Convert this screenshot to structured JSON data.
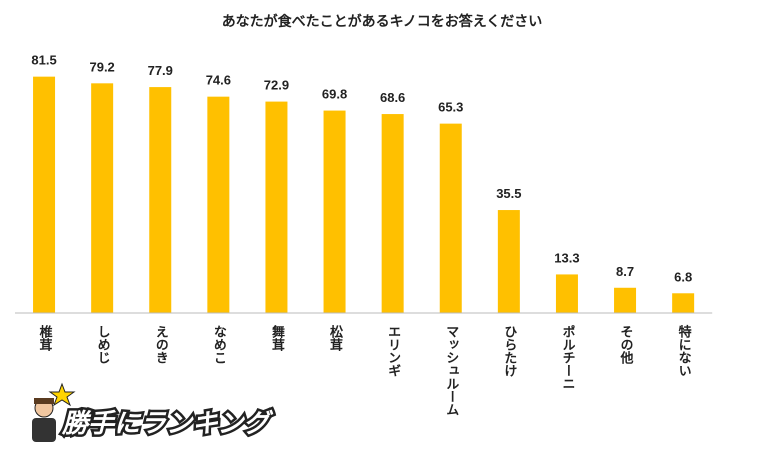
{
  "chart_data": {
    "type": "bar",
    "title": "あなたが食べたことがあるキノコをお答えください",
    "categories": [
      "椎茸",
      "しめじ",
      "えのき",
      "なめこ",
      "舞茸",
      "松茸",
      "エリンギ",
      "マッシュルーム",
      "ひらたけ",
      "ポルチーニ",
      "その他",
      "特にない"
    ],
    "values": [
      81.5,
      79.2,
      77.9,
      74.6,
      72.9,
      69.8,
      68.6,
      65.3,
      35.5,
      13.3,
      8.7,
      6.8
    ],
    "value_labels": [
      "81.5",
      "79.2",
      "77.9",
      "74.6",
      "72.9",
      "69.8",
      "68.6",
      "65.3",
      "35.5",
      "13.3",
      "8.7",
      "6.8"
    ],
    "color": "#ffc000",
    "ylim": [
      0,
      90
    ]
  },
  "logo": "勝手にランキング"
}
